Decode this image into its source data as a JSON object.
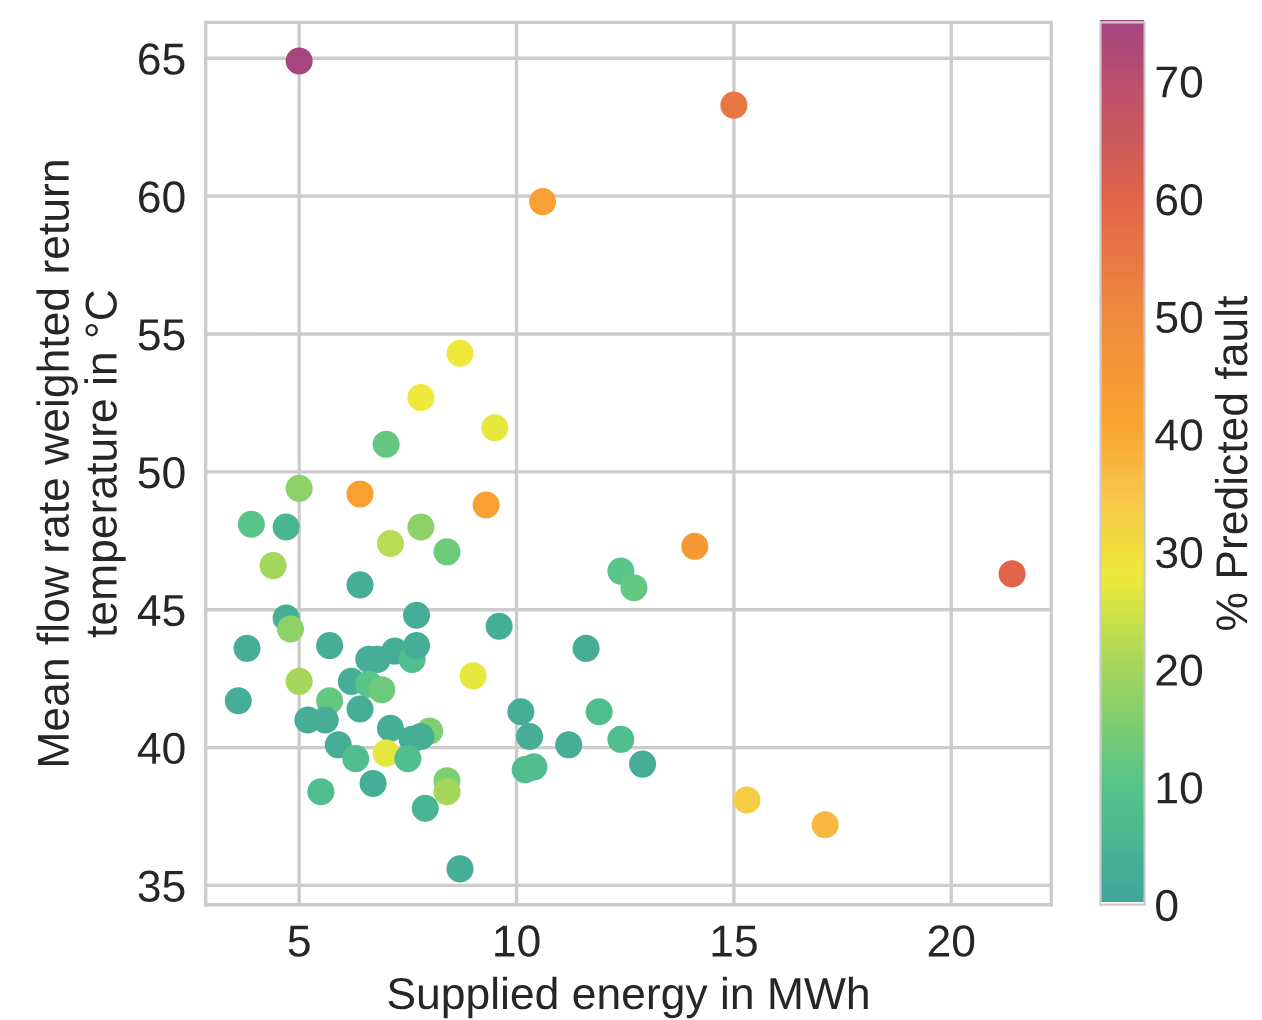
{
  "chart_data": {
    "type": "scatter",
    "xlabel": "Supplied energy in MWh",
    "ylabel": "Mean flow rate weighted return\ntemperature in °C",
    "clabel": "% Predicted fault",
    "xlim": [
      2.85,
      22.3
    ],
    "xticks": [
      5,
      10,
      15,
      20
    ],
    "ylim": [
      34.3,
      66.3
    ],
    "yticks": [
      35,
      40,
      45,
      50,
      55,
      60,
      65
    ],
    "clim": [
      0,
      75
    ],
    "cticks": [
      0,
      10,
      20,
      30,
      40,
      50,
      60,
      70
    ],
    "grid": true,
    "marker": "circle",
    "x": [
      5.0,
      15.0,
      10.6,
      8.7,
      7.8,
      9.5,
      7.0,
      5.0,
      6.4,
      9.3,
      3.9,
      4.7,
      7.8,
      7.1,
      8.4,
      4.4,
      14.1,
      12.4,
      12.7,
      21.4,
      6.4,
      7.7,
      4.7,
      4.8,
      9.6,
      11.6,
      3.8,
      5.7,
      6.8,
      7.2,
      7.6,
      7.7,
      6.6,
      9.0,
      5.0,
      6.2,
      6.6,
      6.9,
      6.4,
      5.7,
      3.6,
      5.2,
      5.6,
      10.1,
      11.9,
      7.1,
      8.0,
      7.6,
      7.8,
      10.3,
      12.4,
      5.9,
      11.2,
      7.0,
      7.5,
      6.3,
      10.2,
      10.4,
      12.9,
      8.4,
      8.4,
      6.7,
      5.5,
      7.9,
      15.3,
      17.1,
      8.7
    ],
    "values": [
      64.9,
      63.3,
      59.8,
      54.3,
      52.7,
      51.6,
      51.0,
      49.4,
      49.2,
      48.8,
      48.1,
      48.0,
      48.0,
      47.4,
      47.1,
      46.6,
      47.3,
      46.4,
      45.8,
      46.3,
      45.9,
      44.8,
      44.7,
      44.3,
      44.4,
      43.6,
      43.6,
      43.7,
      43.2,
      43.5,
      43.2,
      43.7,
      43.2,
      42.6,
      42.4,
      42.4,
      42.3,
      42.1,
      41.4,
      41.7,
      41.7,
      41.0,
      41.0,
      41.3,
      41.3,
      40.7,
      40.6,
      40.3,
      40.4,
      40.4,
      40.3,
      40.1,
      40.1,
      39.8,
      39.6,
      39.6,
      39.2,
      39.3,
      39.4,
      38.8,
      38.4,
      38.7,
      38.4,
      37.8,
      38.1,
      37.2,
      35.6
    ],
    "cvalues": [
      75,
      55,
      42,
      28,
      28,
      27,
      12,
      17,
      42,
      42,
      10,
      5,
      17,
      22,
      13,
      20,
      45,
      10,
      12,
      60,
      3,
      3,
      3,
      17,
      3,
      3,
      3,
      3,
      3,
      3,
      8,
      3,
      3,
      27,
      20,
      3,
      10,
      13,
      3,
      12,
      3,
      3,
      3,
      3,
      8,
      3,
      15,
      3,
      3,
      3,
      8,
      3,
      3,
      27,
      8,
      8,
      8,
      8,
      3,
      15,
      20,
      3,
      8,
      5,
      33,
      37,
      3
    ]
  }
}
